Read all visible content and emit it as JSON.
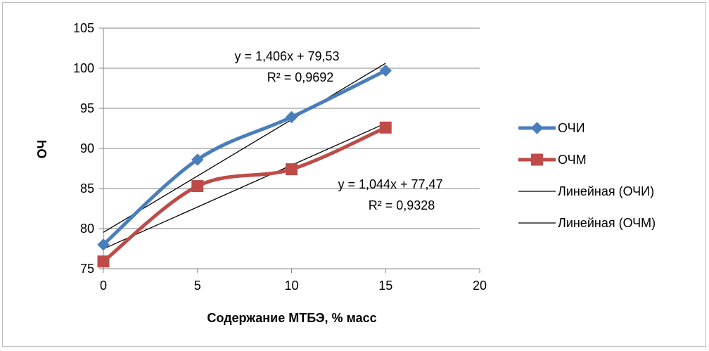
{
  "chart_data": {
    "type": "line",
    "xlabel": "Содержание МТБЭ, % масс",
    "ylabel": "ОЧ",
    "xlim": [
      0,
      20
    ],
    "ylim": [
      75,
      105
    ],
    "x_ticks": [
      0,
      5,
      10,
      15,
      20
    ],
    "y_ticks": [
      75,
      80,
      85,
      90,
      95,
      100,
      105
    ],
    "grid": "horizontal",
    "legend_position": "right",
    "series": [
      {
        "name": "ОЧИ",
        "x": [
          0,
          5,
          10,
          15
        ],
        "y": [
          78,
          88.6,
          93.9,
          99.7
        ],
        "color": "#4a7ebb",
        "marker": "diamond"
      },
      {
        "name": "ОЧМ",
        "x": [
          0,
          5,
          10,
          15
        ],
        "y": [
          75.9,
          85.3,
          87.4,
          92.6
        ],
        "color": "#be4b48",
        "marker": "square"
      }
    ],
    "trendlines": [
      {
        "name": "Линейная (ОЧИ)",
        "slope": 1.406,
        "intercept": 79.53,
        "x_range": [
          0,
          15
        ],
        "color": "#000000",
        "equation": "y = 1,406x + 79,53",
        "r2": "R² = 0,9692"
      },
      {
        "name": "Линейная (ОЧМ)",
        "slope": 1.044,
        "intercept": 77.47,
        "x_range": [
          0,
          15
        ],
        "color": "#000000",
        "equation": "y = 1,044x + 77,47",
        "r2": "R² = 0,9328"
      }
    ]
  }
}
